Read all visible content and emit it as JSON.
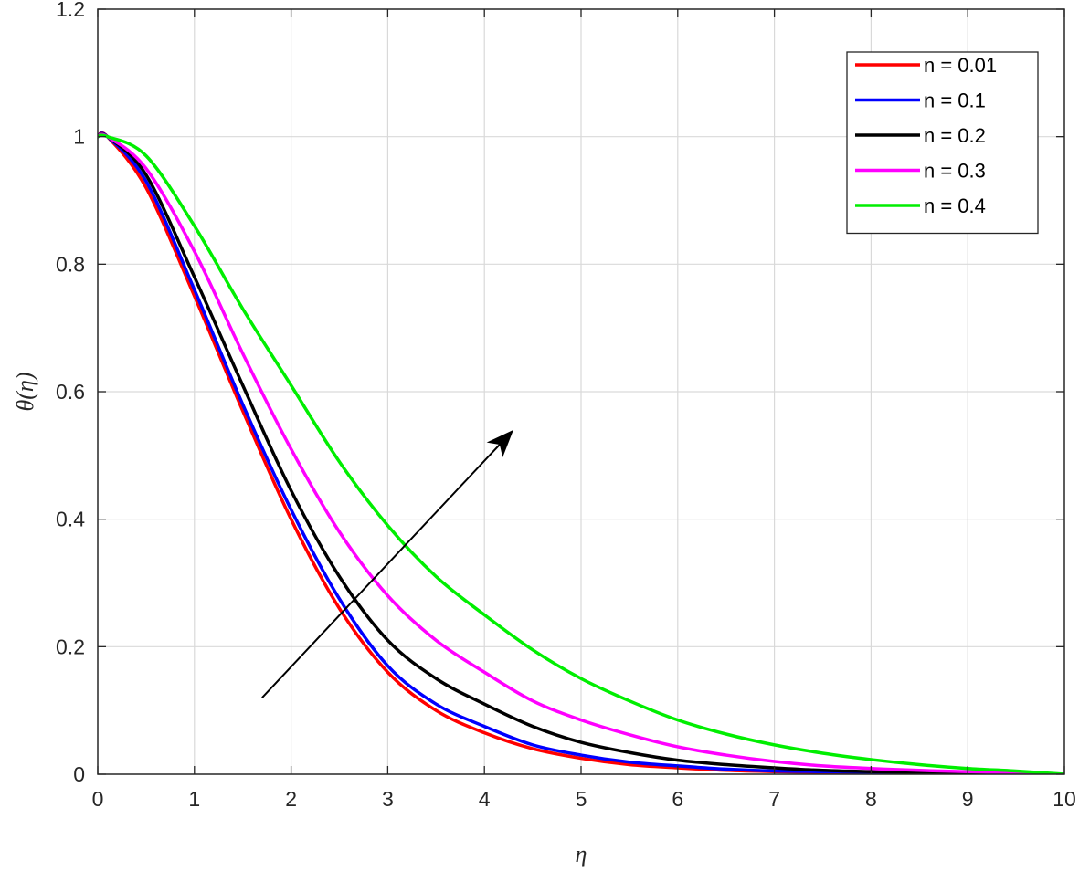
{
  "chart_data": {
    "type": "line",
    "title": "",
    "xlabel": "η",
    "ylabel": "θ(η)",
    "xlim": [
      0,
      10
    ],
    "ylim": [
      0,
      1.2
    ],
    "xticks": [
      0,
      1,
      2,
      3,
      4,
      5,
      6,
      7,
      8,
      9,
      10
    ],
    "xtick_labels": [
      "0",
      "1",
      "2",
      "3",
      "4",
      "5",
      "6",
      "7",
      "8",
      "9",
      "10"
    ],
    "yticks": [
      0,
      0.2,
      0.4,
      0.6,
      0.8,
      1,
      1.2
    ],
    "ytick_labels": [
      "0",
      "0.2",
      "0.4",
      "0.6",
      "0.8",
      "1",
      "1.2"
    ],
    "grid": true,
    "legend_position": "top-right",
    "x": [
      0,
      0.1,
      0.5,
      1,
      1.5,
      2,
      2.5,
      3,
      3.5,
      4,
      4.5,
      5,
      5.5,
      6,
      6.5,
      7,
      7.5,
      8,
      8.5,
      9,
      9.5,
      10
    ],
    "series": [
      {
        "name": "n = 0.01",
        "color": "#ff0000",
        "values": [
          1,
          1,
          0.92,
          0.75,
          0.57,
          0.4,
          0.26,
          0.16,
          0.1,
          0.065,
          0.04,
          0.025,
          0.015,
          0.01,
          0.006,
          0.004,
          0.003,
          0.002,
          0.001,
          0.001,
          0.0005,
          0
        ]
      },
      {
        "name": "n = 0.1",
        "color": "#0000ff",
        "values": [
          1,
          1,
          0.93,
          0.76,
          0.58,
          0.415,
          0.275,
          0.17,
          0.11,
          0.075,
          0.046,
          0.03,
          0.019,
          0.013,
          0.008,
          0.005,
          0.004,
          0.003,
          0.002,
          0.001,
          0.0005,
          0
        ]
      },
      {
        "name": "n = 0.2",
        "color": "#000000",
        "values": [
          1,
          1,
          0.94,
          0.78,
          0.61,
          0.445,
          0.31,
          0.21,
          0.15,
          0.11,
          0.075,
          0.05,
          0.034,
          0.022,
          0.015,
          0.01,
          0.006,
          0.004,
          0.003,
          0.002,
          0.001,
          0
        ]
      },
      {
        "name": "n = 0.3",
        "color": "#ff00ff",
        "values": [
          1,
          1,
          0.95,
          0.82,
          0.66,
          0.51,
          0.38,
          0.28,
          0.21,
          0.16,
          0.115,
          0.085,
          0.062,
          0.043,
          0.03,
          0.02,
          0.013,
          0.009,
          0.006,
          0.004,
          0.002,
          0
        ]
      },
      {
        "name": "n = 0.4",
        "color": "#00ee00",
        "values": [
          1,
          1,
          0.97,
          0.86,
          0.73,
          0.61,
          0.49,
          0.39,
          0.31,
          0.25,
          0.195,
          0.15,
          0.115,
          0.085,
          0.063,
          0.046,
          0.033,
          0.023,
          0.015,
          0.009,
          0.005,
          0
        ]
      }
    ],
    "annotation": {
      "type": "arrow",
      "from": [
        1.7,
        0.12
      ],
      "to": [
        4.3,
        0.54
      ],
      "color": "#000000"
    }
  }
}
